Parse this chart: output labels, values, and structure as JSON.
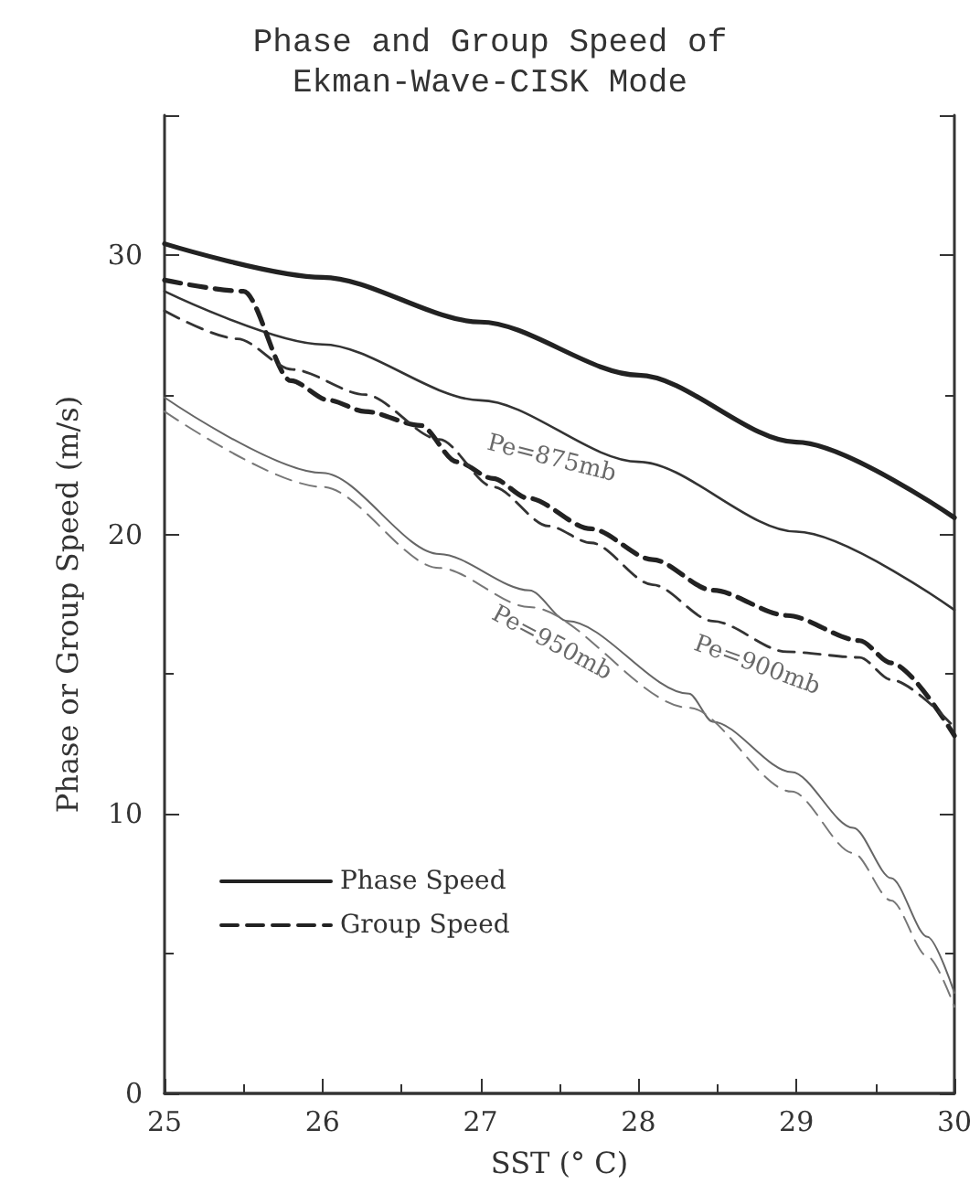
{
  "chart_data": {
    "type": "line",
    "title": "Phase and Group Speed of\nEkman-Wave-CISK Mode",
    "xlabel": "SST (° C)",
    "ylabel": "Phase or Group Speed (m/s)",
    "xlim": [
      25,
      30
    ],
    "xticks": [
      25,
      26,
      27,
      28,
      29,
      30
    ],
    "ylim": [
      0,
      35
    ],
    "yticks": [
      0,
      10,
      20,
      30
    ],
    "grid": false,
    "legend": "bottom left",
    "marker": "none",
    "series": [
      {
        "name": "Phase Speed",
        "color": "#222222",
        "line_style": "solid",
        "x": [
          25,
          26,
          27,
          28,
          29,
          30
        ],
        "values": [
          30.4,
          29.2,
          27.6,
          25.7,
          23.3,
          20.6
        ]
      },
      {
        "color": "#333333",
        "line_style": "solid",
        "x": [
          25,
          26,
          27,
          28,
          29,
          30
        ],
        "values": [
          28.7,
          26.8,
          24.8,
          22.6,
          20.1,
          17.3
        ]
      },
      {
        "color": "#666666",
        "line_style": "solid",
        "x": [
          25,
          26,
          26.74,
          27.31,
          27.55,
          28.32,
          28.47,
          28.97,
          29.36,
          29.6,
          29.83,
          30
        ],
        "values": [
          24.9,
          22.2,
          19.3,
          18.0,
          16.9,
          14.3,
          13.3,
          11.5,
          9.5,
          7.7,
          5.6,
          3.6
        ]
      },
      {
        "name": "Group Speed",
        "color": "#222222",
        "line_style": "dashed",
        "x": [
          25,
          25.5,
          25.8,
          26.04,
          26.27,
          26.62,
          26.85,
          27.08,
          27.3,
          27.7,
          28.09,
          28.47,
          28.94,
          29.4,
          29.6,
          30
        ],
        "values": [
          29.1,
          28.7,
          25.5,
          24.8,
          24.4,
          23.9,
          22.6,
          22.0,
          21.3,
          20.2,
          19.1,
          18.0,
          17.1,
          16.2,
          15.4,
          12.8
        ]
      },
      {
        "color": "#333333",
        "line_style": "dashed",
        "x": [
          25,
          25.46,
          25.81,
          26.27,
          26.74,
          27.08,
          27.43,
          27.7,
          28.09,
          28.47,
          28.94,
          29.4,
          29.6,
          30
        ],
        "values": [
          28.0,
          27.0,
          25.9,
          25.0,
          23.4,
          21.7,
          20.3,
          19.7,
          18.2,
          16.9,
          15.8,
          15.6,
          14.8,
          13.1
        ]
      },
      {
        "color": "#777777",
        "line_style": "dashed",
        "x": [
          25,
          26,
          26.74,
          27.31,
          28.32,
          28.97,
          29.36,
          29.6,
          29.83,
          30
        ],
        "values": [
          24.4,
          21.7,
          18.8,
          17.4,
          13.8,
          10.8,
          8.6,
          6.9,
          4.9,
          3.1
        ]
      }
    ],
    "annotations": [
      "Pe=875mb",
      "Pe=900mb",
      "Pe=950mb"
    ]
  }
}
